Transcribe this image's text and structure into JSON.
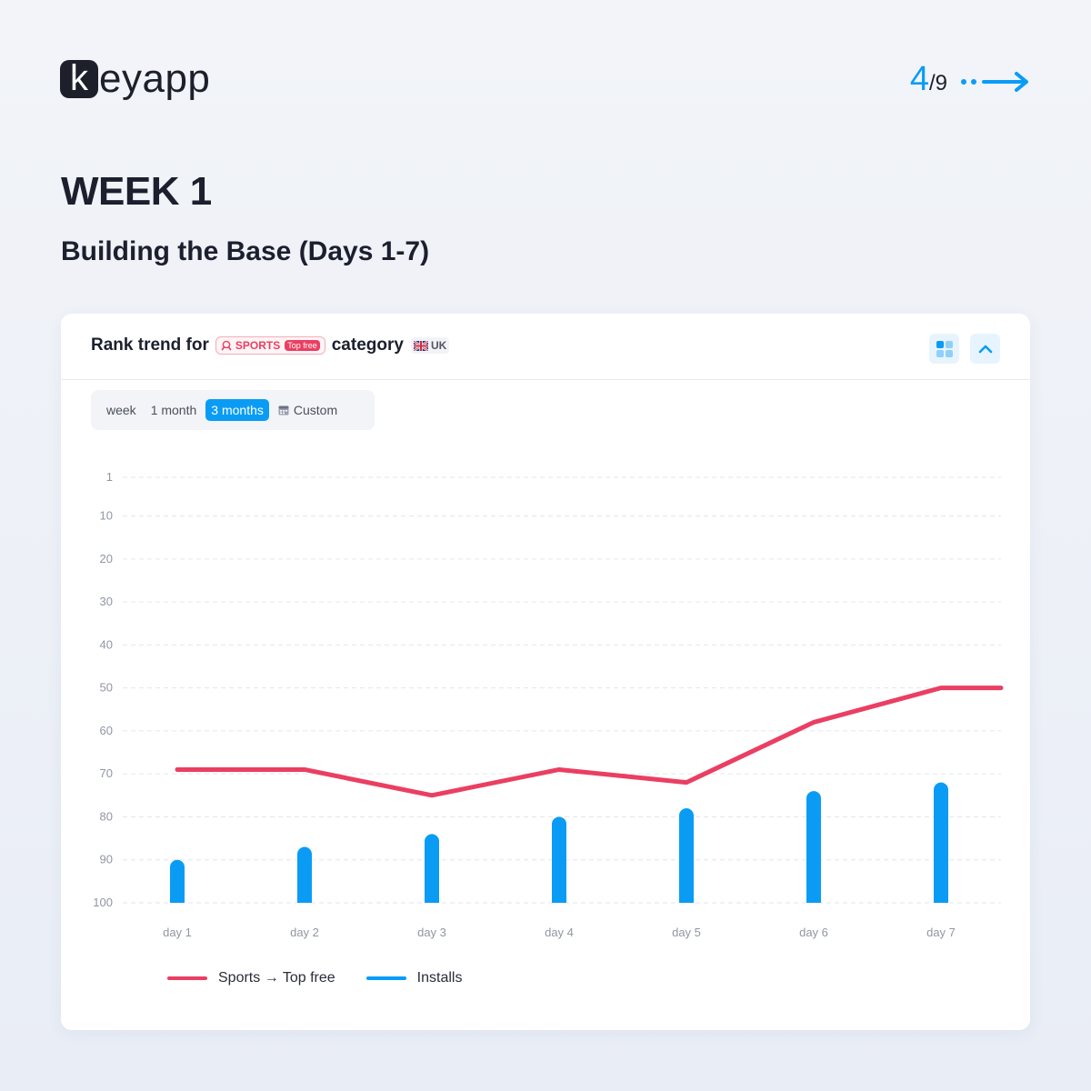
{
  "brand": {
    "logo_letter": "k",
    "logo_rest": "eyapp"
  },
  "pager": {
    "current": "4",
    "total": "/9"
  },
  "heading": {
    "title": "WEEK 1",
    "subtitle": "Building the Base (Days 1-7)"
  },
  "card": {
    "title_prefix": "Rank trend for",
    "category_name": "SPORTS",
    "category_badge": "Top free",
    "title_suffix": "category",
    "country_code": "UK",
    "range_tabs": [
      "week",
      "1 month",
      "3 months",
      "Custom"
    ],
    "active_tab_index": 2
  },
  "colors": {
    "accent": "#0a9cf5",
    "rank_line": "#ea3f62",
    "installs": "#0a9cf5"
  },
  "icons": [
    "sports-category-icon",
    "uk-flag-icon",
    "grid-view-icon",
    "chevron-up-icon",
    "calendar-icon",
    "arrow-right-icon"
  ],
  "chart_data": {
    "type": "line",
    "categories": [
      "day 1",
      "day 2",
      "day 3",
      "day 4",
      "day 5",
      "day 6",
      "day 7"
    ],
    "y_ticks": [
      "1",
      "10",
      "20",
      "30",
      "40",
      "50",
      "60",
      "70",
      "80",
      "90",
      "100"
    ],
    "ylim": [
      1,
      100
    ],
    "y_inverted": true,
    "grid": true,
    "legend_position": "bottom-left",
    "series": [
      {
        "name": "Sports → Top free",
        "type": "line",
        "color": "#ea3f62",
        "values": [
          69,
          69,
          75,
          69,
          72,
          58,
          50
        ],
        "extends_to_right_edge": true
      },
      {
        "name": "Installs",
        "type": "bar",
        "color": "#0a9cf5",
        "values": [
          90,
          87,
          84,
          80,
          78,
          74,
          72
        ],
        "unit_note": "bars drawn on rank axis scale"
      }
    ]
  }
}
